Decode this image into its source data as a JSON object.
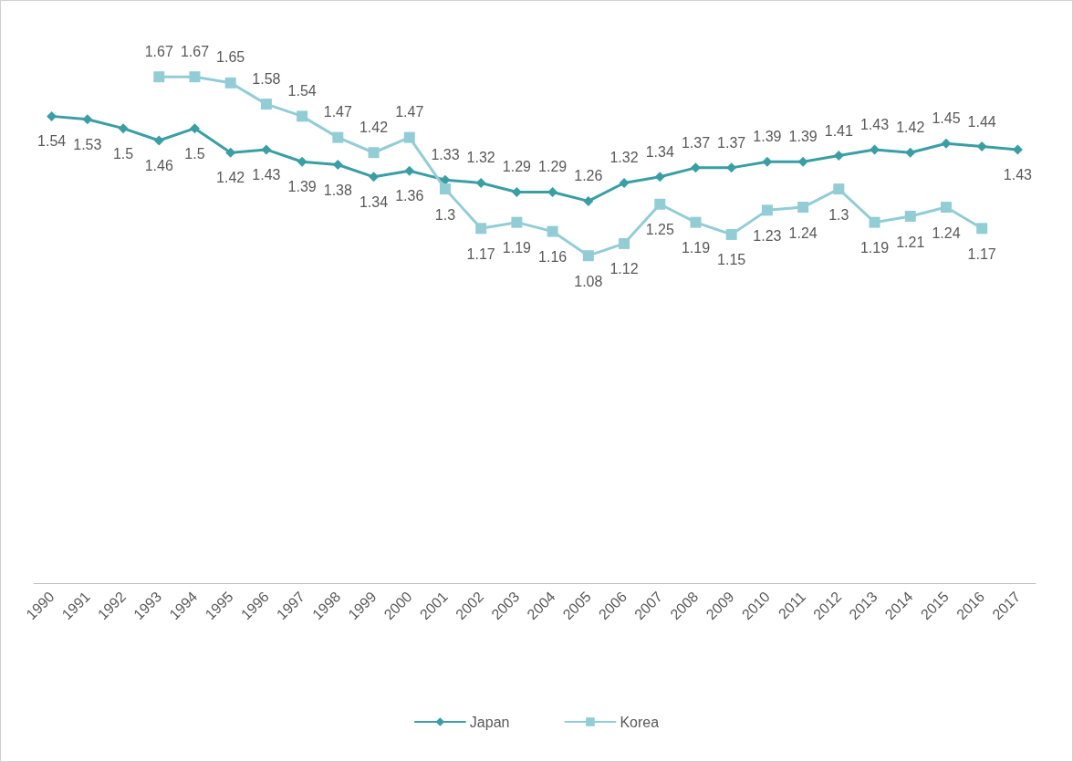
{
  "chart_data": {
    "type": "line",
    "categories": [
      "1990",
      "1991",
      "1992",
      "1993",
      "1994",
      "1995",
      "1996",
      "1997",
      "1998",
      "1999",
      "2000",
      "2001",
      "2002",
      "2003",
      "2004",
      "2005",
      "2006",
      "2007",
      "2008",
      "2009",
      "2010",
      "2011",
      "2012",
      "2013",
      "2014",
      "2015",
      "2016",
      "2017"
    ],
    "series": [
      {
        "name": "Japan",
        "color": "#3a9ea5",
        "marker": "diamond",
        "values": [
          1.54,
          1.53,
          1.5,
          1.46,
          1.5,
          1.42,
          1.43,
          1.39,
          1.38,
          1.34,
          1.36,
          1.33,
          1.32,
          1.29,
          1.29,
          1.26,
          1.32,
          1.34,
          1.37,
          1.37,
          1.39,
          1.39,
          1.41,
          1.43,
          1.42,
          1.45,
          1.44,
          1.43
        ]
      },
      {
        "name": "Korea",
        "color": "#92cdd6",
        "marker": "square",
        "values": [
          null,
          null,
          null,
          1.67,
          1.67,
          1.65,
          1.58,
          1.54,
          1.47,
          1.42,
          1.47,
          1.3,
          1.17,
          1.19,
          1.16,
          1.08,
          1.12,
          1.25,
          1.19,
          1.15,
          1.23,
          1.24,
          1.3,
          1.19,
          1.21,
          1.24,
          1.17,
          null
        ]
      }
    ],
    "tick_labels": "x",
    "data_labels": true,
    "grid": false,
    "legend": "bottom",
    "line_style": "solid"
  }
}
